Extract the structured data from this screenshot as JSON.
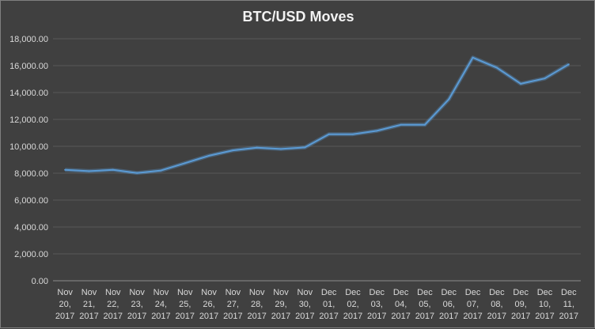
{
  "chart_data": {
    "type": "line",
    "title": "BTC/USD Moves",
    "xlabel": "",
    "ylabel": "",
    "ylim": [
      0,
      18000
    ],
    "yticks": [
      "0.00",
      "2,000.00",
      "4,000.00",
      "6,000.00",
      "8,000.00",
      "10,000.00",
      "12,000.00",
      "14,000.00",
      "16,000.00",
      "18,000.00"
    ],
    "grid": true,
    "legend": "none",
    "line_color": "#5b9bd5",
    "categories": [
      [
        "Nov",
        "20,",
        "2017"
      ],
      [
        "Nov",
        "21,",
        "2017"
      ],
      [
        "Nov",
        "22,",
        "2017"
      ],
      [
        "Nov",
        "23,",
        "2017"
      ],
      [
        "Nov",
        "24,",
        "2017"
      ],
      [
        "Nov",
        "25,",
        "2017"
      ],
      [
        "Nov",
        "26,",
        "2017"
      ],
      [
        "Nov",
        "27,",
        "2017"
      ],
      [
        "Nov",
        "28,",
        "2017"
      ],
      [
        "Nov",
        "29,",
        "2017"
      ],
      [
        "Nov",
        "30,",
        "2017"
      ],
      [
        "Dec",
        "01,",
        "2017"
      ],
      [
        "Dec",
        "02,",
        "2017"
      ],
      [
        "Dec",
        "03,",
        "2017"
      ],
      [
        "Dec",
        "04,",
        "2017"
      ],
      [
        "Dec",
        "05,",
        "2017"
      ],
      [
        "Dec",
        "06,",
        "2017"
      ],
      [
        "Dec",
        "07,",
        "2017"
      ],
      [
        "Dec",
        "08,",
        "2017"
      ],
      [
        "Dec",
        "09,",
        "2017"
      ],
      [
        "Dec",
        "10,",
        "2017"
      ],
      [
        "Dec",
        "11,",
        "2017"
      ]
    ],
    "values": [
      8250,
      8150,
      8250,
      8020,
      8200,
      8750,
      9300,
      9700,
      9900,
      9800,
      9920,
      10900,
      10900,
      11150,
      11600,
      11600,
      13500,
      16600,
      15850,
      14650,
      15050,
      16100
    ]
  }
}
